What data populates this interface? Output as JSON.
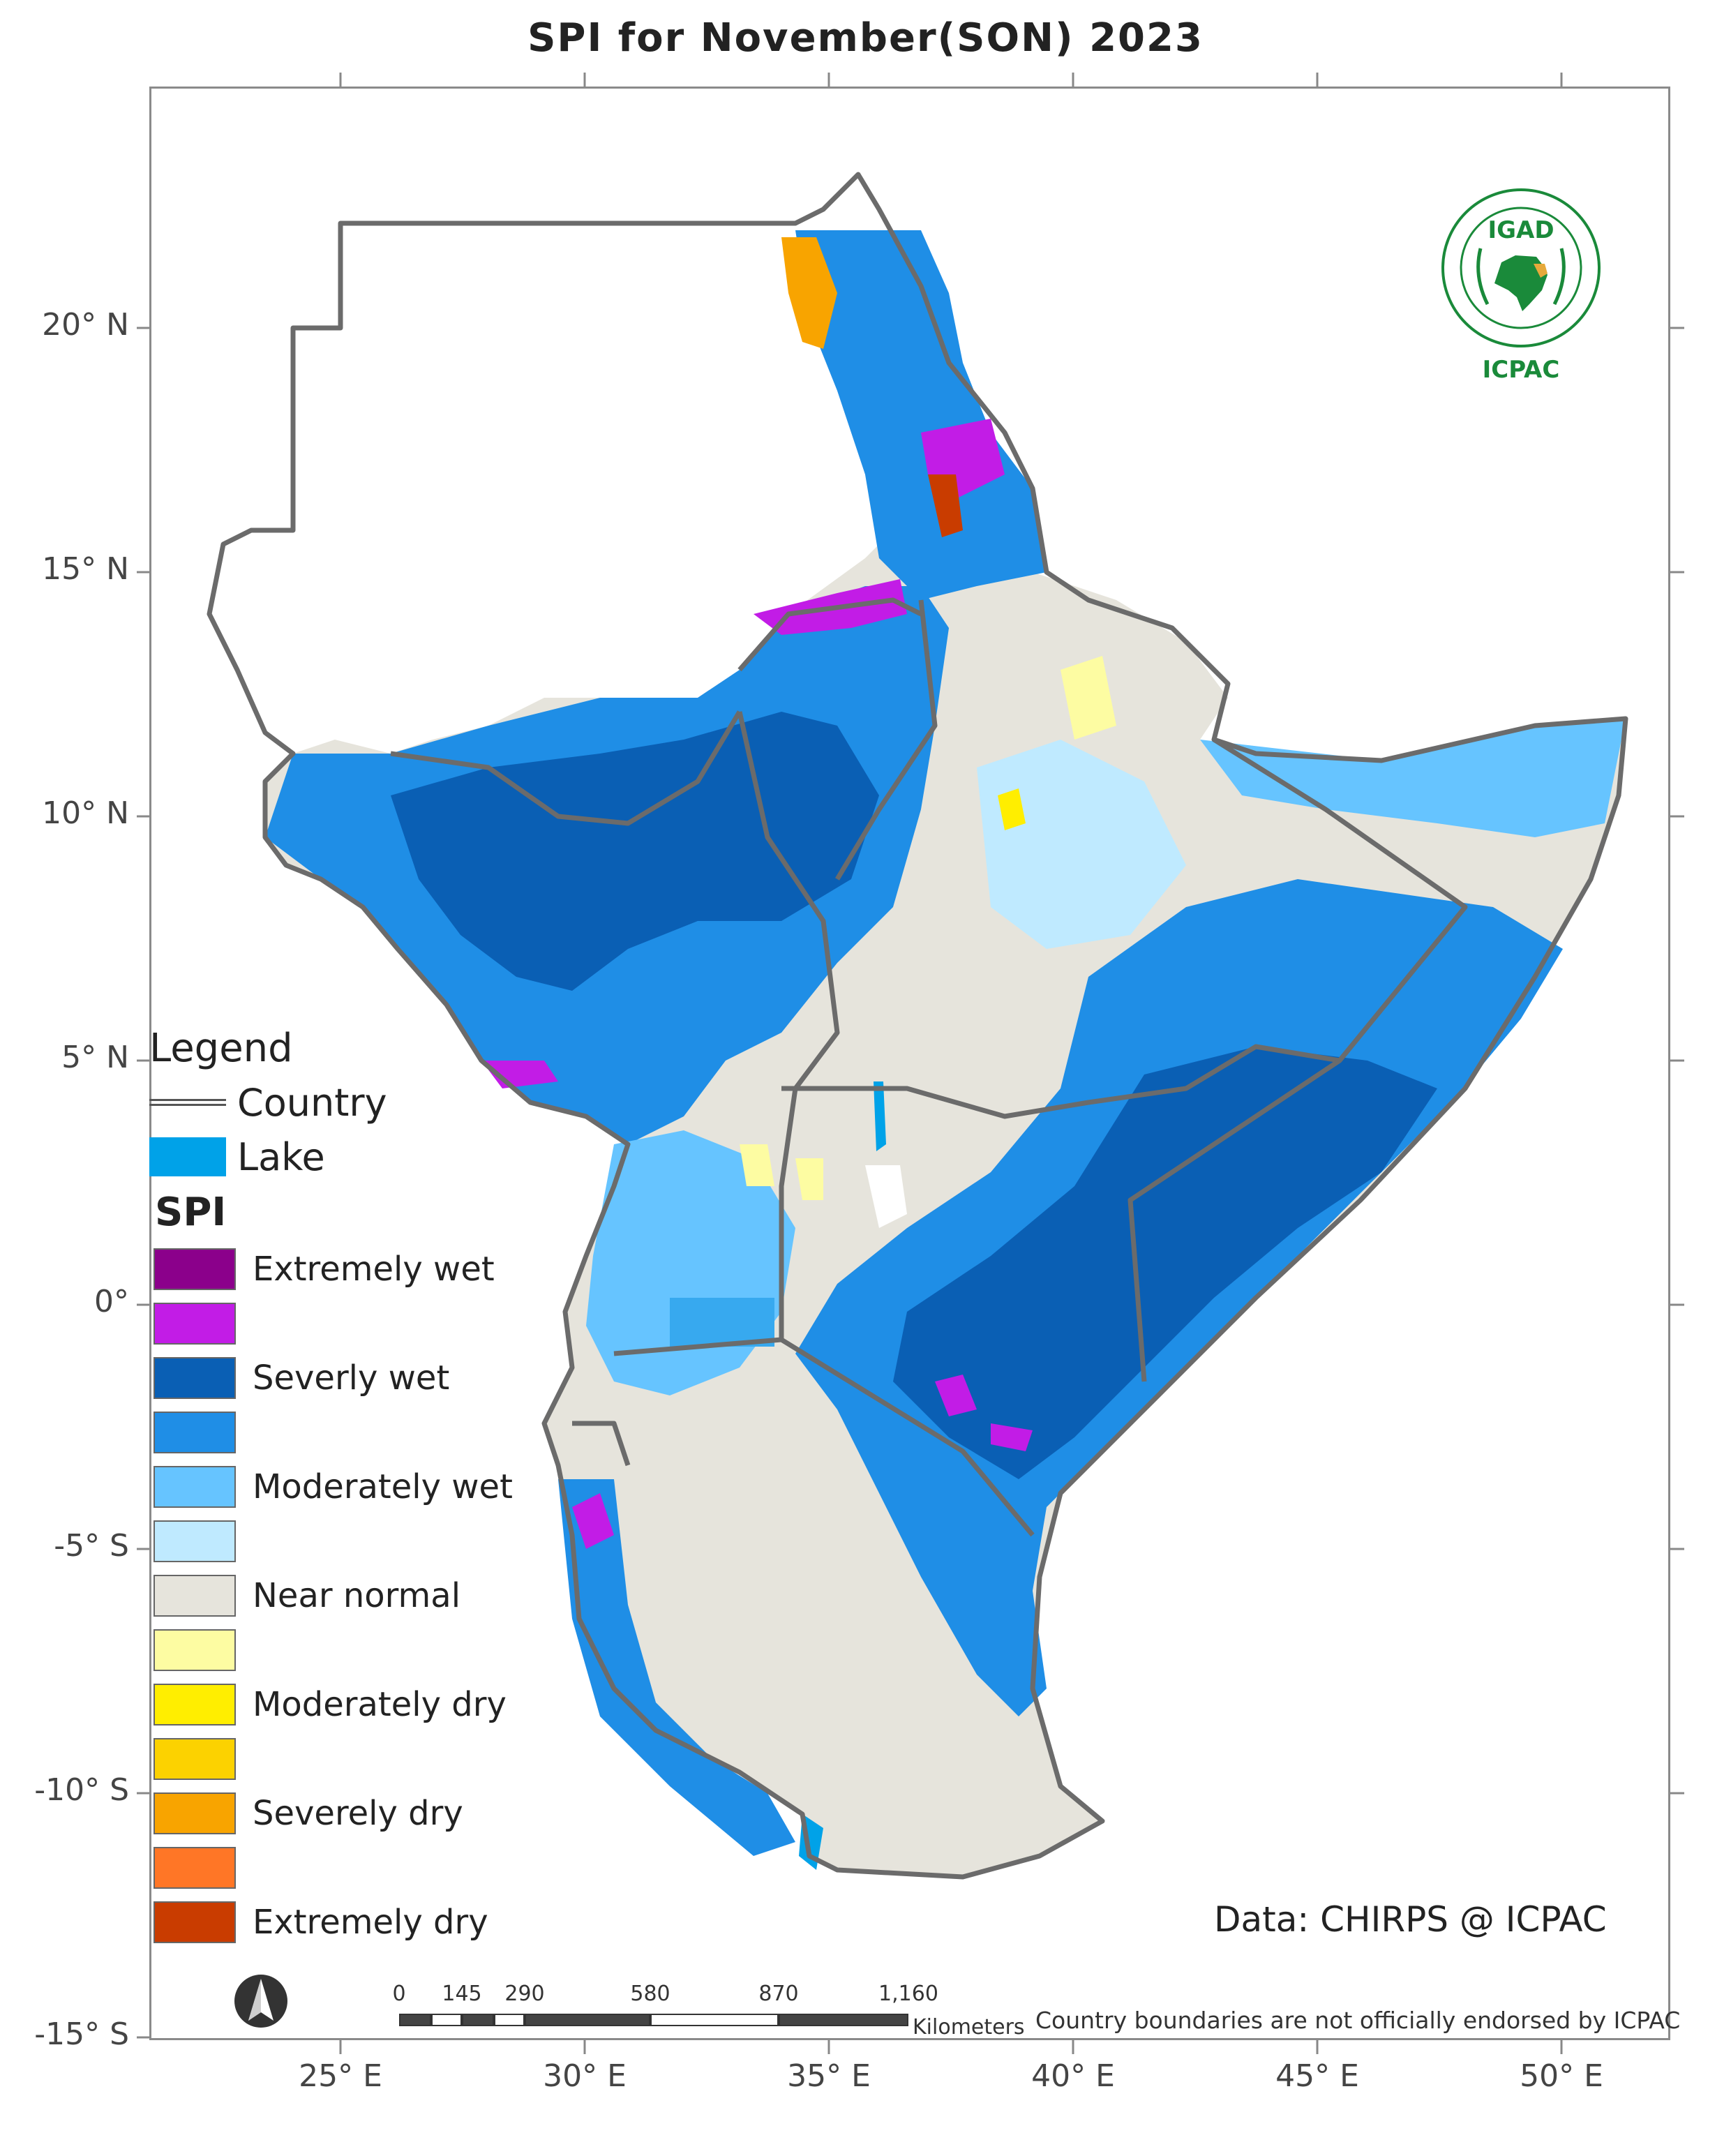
{
  "title": "SPI   for November(SON) 2023",
  "axes": {
    "lat_labels": [
      "20° N",
      "15° N",
      "10° N",
      "5° N",
      "0°",
      "-5° S",
      "-10° S",
      "-15° S"
    ],
    "lon_labels": [
      "25° E",
      "30° E",
      "35° E",
      "40° E",
      "45° E",
      "50° E"
    ]
  },
  "legend": {
    "title": "Legend",
    "country_label": "Country",
    "lake_label": "Lake",
    "spi_title": "SPI",
    "classes": [
      {
        "label": "Extremely wet",
        "color": "#8b008b"
      },
      {
        "label": "",
        "color": "#c21ce6"
      },
      {
        "label": "Severly wet",
        "color": "#0a5fb4"
      },
      {
        "label": "",
        "color": "#1f8ee6"
      },
      {
        "label": "Moderately wet",
        "color": "#66c4ff"
      },
      {
        "label": "",
        "color": "#bfeaff"
      },
      {
        "label": "Near normal",
        "color": "#e6e4dc"
      },
      {
        "label": "",
        "color": "#fdfca2"
      },
      {
        "label": "Moderately dry",
        "color": "#ffee00"
      },
      {
        "label": "",
        "color": "#fcd200"
      },
      {
        "label": "Severely dry",
        "color": "#f8a400"
      },
      {
        "label": "",
        "color": "#ff7626"
      },
      {
        "label": "Extremely dry",
        "color": "#c93c00"
      }
    ]
  },
  "scale_bar": {
    "ticks": [
      "0",
      "145",
      "290",
      "580",
      "870",
      "1,160"
    ],
    "units": "Kilometers"
  },
  "credit": "Data: CHIRPS @ ICPAC",
  "disclaimer": "Country boundaries are not officially endorsed by ICPAC",
  "logo": {
    "top_text": "IGAD",
    "bottom_text": "ICPAC",
    "brand_color": "#1a8a3a"
  }
}
